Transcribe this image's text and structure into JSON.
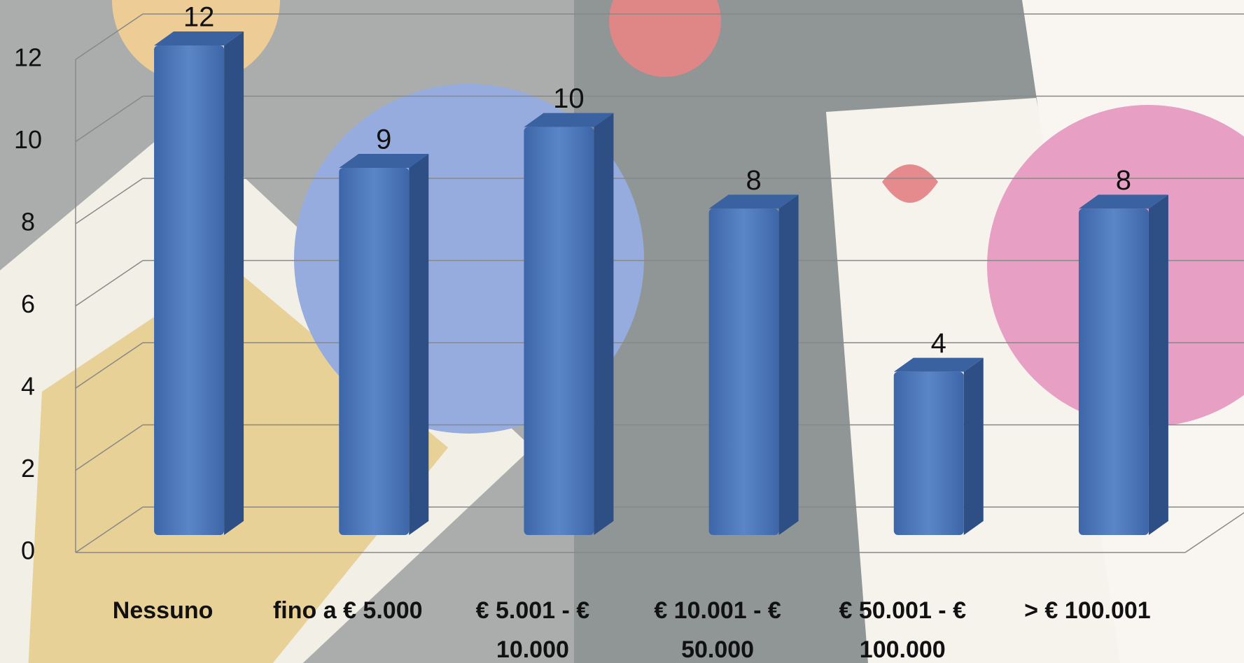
{
  "chart_data": {
    "type": "bar3d",
    "categories": [
      "Nessuno",
      "fino a € 5.000",
      "€ 5.001 - € 10.000",
      "€ 10.001 - € 50.000",
      "€ 50.001 - € 100.000",
      "> € 100.001"
    ],
    "values": [
      12,
      9,
      10,
      8,
      4,
      8
    ],
    "color": "#4a74b8",
    "ylim": [
      0,
      12
    ],
    "yticks": [
      0,
      2,
      4,
      6,
      8,
      10,
      12
    ],
    "grid": true
  }
}
